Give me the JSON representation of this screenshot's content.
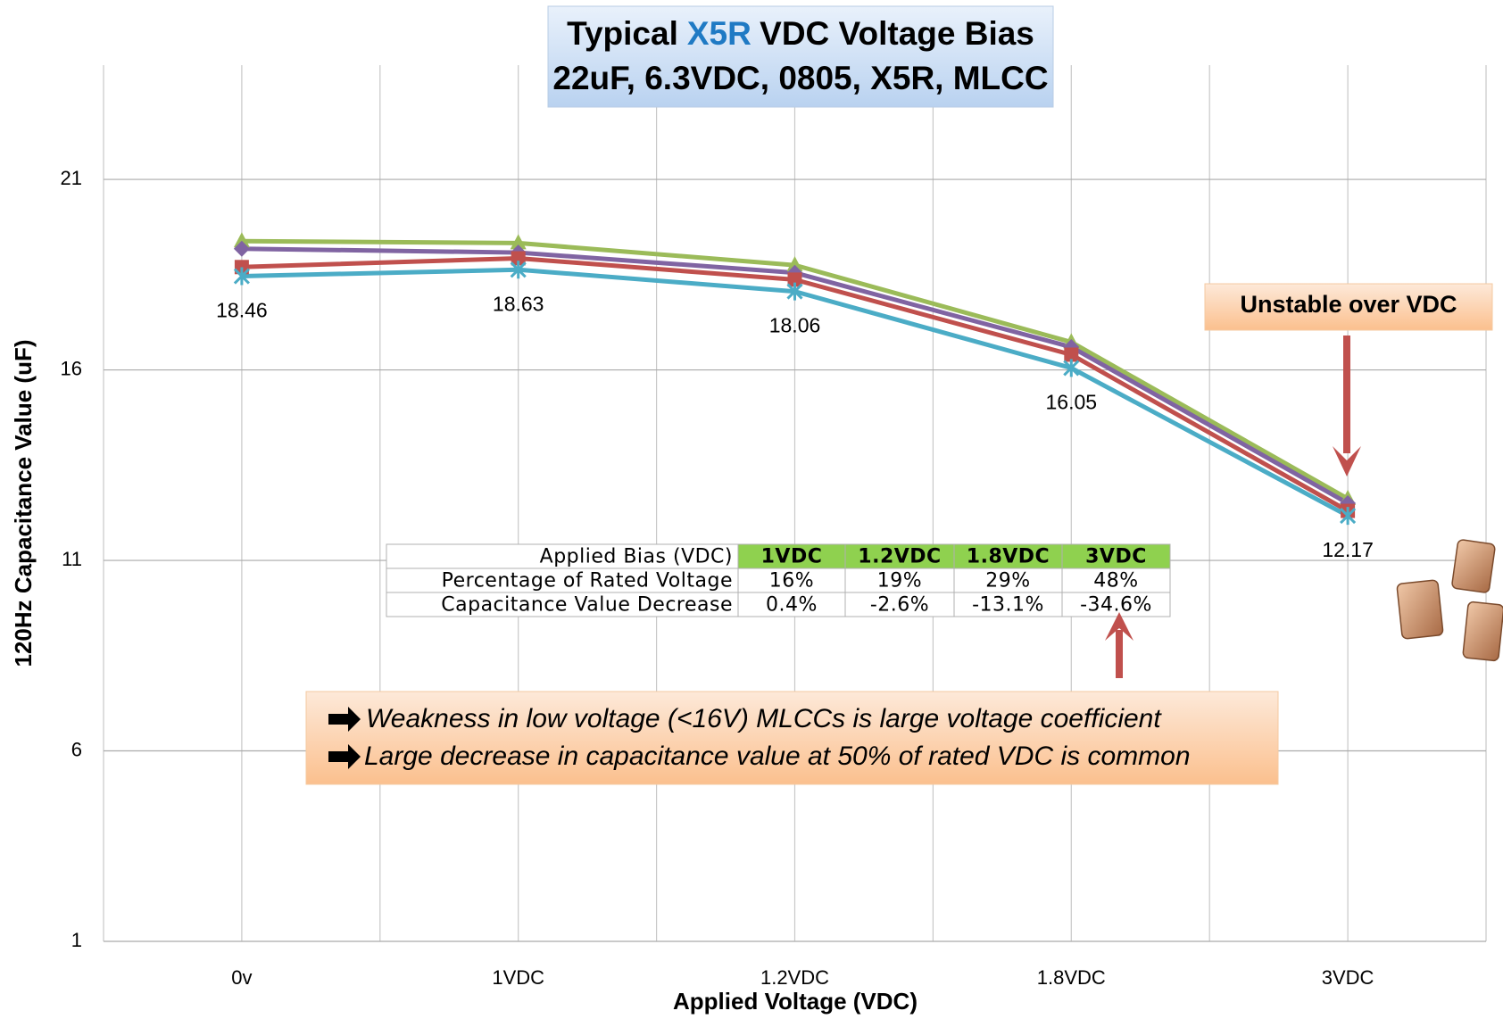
{
  "chart_data": {
    "type": "line",
    "title": {
      "before": "Typical",
      "highlight": "X5R",
      "after": "VDC Voltage Bias"
    },
    "subtitle": "22uF, 6.3VDC, 0805, X5R, MLCC",
    "x_label": "Applied Voltage (VDC)",
    "y_label": "120Hz Capacitance Value (uF)",
    "categories": [
      "0v",
      "1VDC",
      "1.2VDC",
      "1.8VDC",
      "3VDC"
    ],
    "series": [
      {
        "color": "#9bbb59",
        "marker": "triangle",
        "values": [
          19.38,
          19.33,
          18.75,
          16.73,
          12.62
        ]
      },
      {
        "color": "#8064a2",
        "marker": "diamond",
        "values": [
          19.18,
          19.08,
          18.55,
          16.6,
          12.5
        ]
      },
      {
        "color": "#c0504d",
        "marker": "square",
        "values": [
          18.7,
          18.93,
          18.37,
          16.4,
          12.3
        ]
      },
      {
        "color": "#4bacc6",
        "marker": "x",
        "values": [
          18.46,
          18.63,
          18.06,
          16.05,
          12.17
        ],
        "data_labels": true
      }
    ],
    "ylim": [
      1,
      24
    ],
    "yticks": [
      1,
      6,
      11,
      16,
      21
    ],
    "grid": true,
    "table": {
      "rows": [
        [
          "Applied Bias (VDC)",
          "1VDC",
          "1.2VDC",
          "1.8VDC",
          "3VDC"
        ],
        [
          "Percentage of Rated Voltage",
          "16%",
          "19%",
          "29%",
          "48%"
        ],
        [
          "Capacitance Value Decrease",
          "0.4%",
          "-2.6%",
          "-13.1%",
          "-34.6%"
        ]
      ]
    },
    "callout": "Unstable over VDC",
    "notes": [
      "Weakness in low voltage (<16V) MLCCs is large voltage coefficient",
      "Large  decrease in capacitance value at 50% of rated VDC is common"
    ]
  }
}
